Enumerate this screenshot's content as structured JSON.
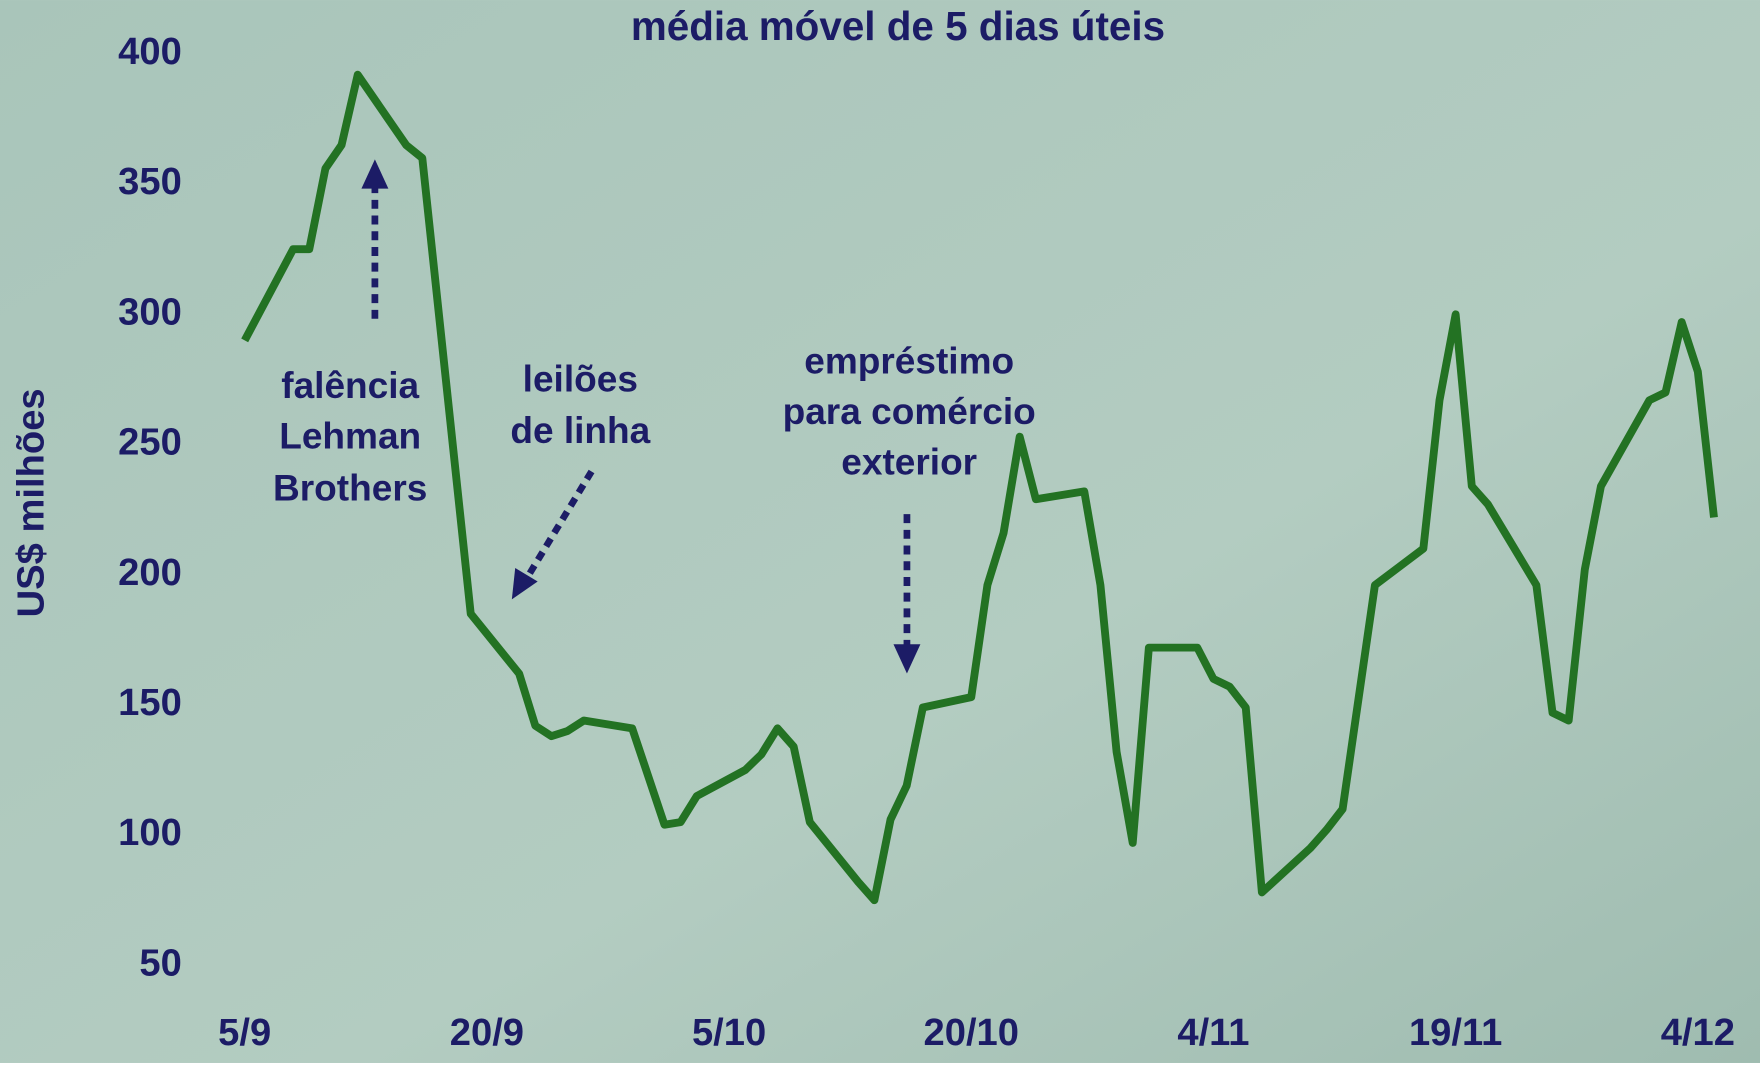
{
  "chart_data": {
    "type": "line",
    "title": "média móvel de 5 dias úteis",
    "y_label": "US$ milhões",
    "xlim": [
      0,
      91
    ],
    "ylim": [
      50,
      400
    ],
    "xticks": [
      {
        "value": 0,
        "label": "5/9"
      },
      {
        "value": 15,
        "label": "20/9"
      },
      {
        "value": 30,
        "label": "5/10"
      },
      {
        "value": 45,
        "label": "20/10"
      },
      {
        "value": 60,
        "label": "4/11"
      },
      {
        "value": 75,
        "label": "19/11"
      },
      {
        "value": 90,
        "label": "4/12"
      }
    ],
    "yticks": [
      50,
      100,
      150,
      200,
      250,
      300,
      350,
      400
    ],
    "annotations": [
      [
        "falência",
        "Lehman",
        "Brothers"
      ],
      [
        "leilões",
        "de linha"
      ],
      [
        "empréstimo",
        "para comércio",
        "exterior"
      ]
    ],
    "series": [
      {
        "color": "#237223",
        "x": [
          0,
          3,
          4,
          5,
          6,
          7,
          10,
          11,
          14,
          17,
          18,
          19,
          20,
          21,
          24,
          26,
          27,
          28,
          31,
          32,
          33,
          34,
          35,
          38,
          39,
          40,
          41,
          42,
          45,
          46,
          47,
          48,
          49,
          52,
          53,
          54,
          55,
          56,
          59,
          60,
          61,
          62,
          63,
          66,
          67,
          68,
          70,
          73,
          74,
          75,
          76,
          77,
          80,
          81,
          82,
          83,
          84,
          87,
          88,
          89,
          90,
          91
        ],
        "values": [
          290,
          325,
          325,
          356,
          365,
          392,
          365,
          360,
          185,
          162,
          142,
          138,
          140,
          144,
          141,
          104,
          105,
          115,
          125,
          131,
          141,
          134,
          105,
          82,
          75,
          106,
          119,
          149,
          153,
          196,
          216,
          253,
          229,
          232,
          196,
          132,
          97,
          172,
          172,
          160,
          157,
          149,
          78,
          95,
          102,
          110,
          196,
          210,
          267,
          300,
          234,
          227,
          196,
          147,
          144,
          202,
          234,
          267,
          270,
          297,
          278,
          222
        ]
      }
    ]
  }
}
